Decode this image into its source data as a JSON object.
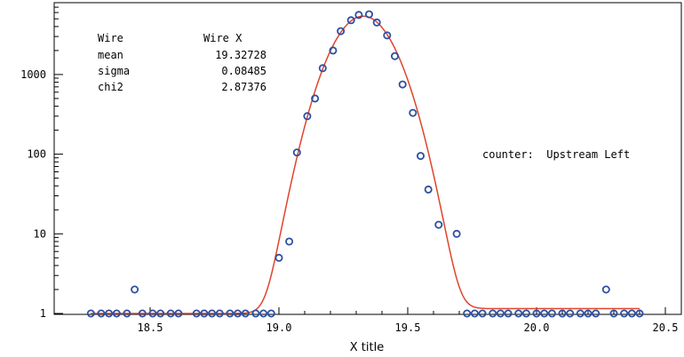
{
  "chart_data": {
    "type": "scatter",
    "title": "",
    "xlabel": "X title",
    "ylabel": "",
    "xlim": [
      18.2,
      20.5
    ],
    "ylim": [
      0.8,
      6500
    ],
    "yscale": "log",
    "grid": false,
    "x_ticks": [
      "18.5",
      "19.0",
      "19.5",
      "20.0",
      "20.5"
    ],
    "y_ticks": [
      "1",
      "10",
      "100",
      "1000"
    ],
    "stats": {
      "title_left": "Wire",
      "title_right": "Wire X",
      "rows": [
        {
          "label": "mean",
          "value": "19.32728"
        },
        {
          "label": "sigma",
          "value": "0.08485"
        },
        {
          "label": "chi2",
          "value": "2.87376"
        }
      ]
    },
    "annotation": "counter:  Upstream Left",
    "colors": {
      "points": "#2b4fa3",
      "fit": "#e0442a",
      "axes": "#000000"
    },
    "series": [
      {
        "kind": "points",
        "x": [
          18.27,
          18.31,
          18.34,
          18.37,
          18.41,
          18.44,
          18.47,
          18.51,
          18.54,
          18.58,
          18.61,
          18.68,
          18.71,
          18.74,
          18.77,
          18.81,
          18.84,
          18.87,
          18.91,
          18.94,
          18.97,
          19.0,
          19.04,
          19.07,
          19.11,
          19.14,
          19.17,
          19.21,
          19.24,
          19.28,
          19.31,
          19.35,
          19.38,
          19.42,
          19.45,
          19.48,
          19.52,
          19.55,
          19.58,
          19.62,
          19.69,
          19.73,
          19.76,
          19.79,
          19.83,
          19.86,
          19.89,
          19.93,
          19.96,
          20.0,
          20.03,
          20.06,
          20.1,
          20.13,
          20.17,
          20.2,
          20.23,
          20.27,
          20.3,
          20.34,
          20.37,
          20.4
        ],
        "y": [
          1,
          1,
          1,
          1,
          1,
          2,
          1,
          1,
          1,
          1,
          1,
          1,
          1,
          1,
          1,
          1,
          1,
          1,
          1,
          1,
          1,
          5,
          8,
          105,
          300,
          500,
          1200,
          2000,
          3500,
          4800,
          5600,
          5700,
          4500,
          3100,
          1700,
          750,
          330,
          95,
          36,
          13,
          10,
          1,
          1,
          1,
          1,
          1,
          1,
          1,
          1,
          1,
          1,
          1,
          1,
          1,
          1,
          1,
          1,
          2,
          1,
          1,
          1,
          1
        ]
      },
      {
        "kind": "fit",
        "mean": 19.32728,
        "sigma": 0.08485,
        "amplitude": 5400,
        "baseline": 1.0,
        "baseline_right": 1.15,
        "x_range": [
          18.27,
          20.4
        ]
      }
    ]
  }
}
